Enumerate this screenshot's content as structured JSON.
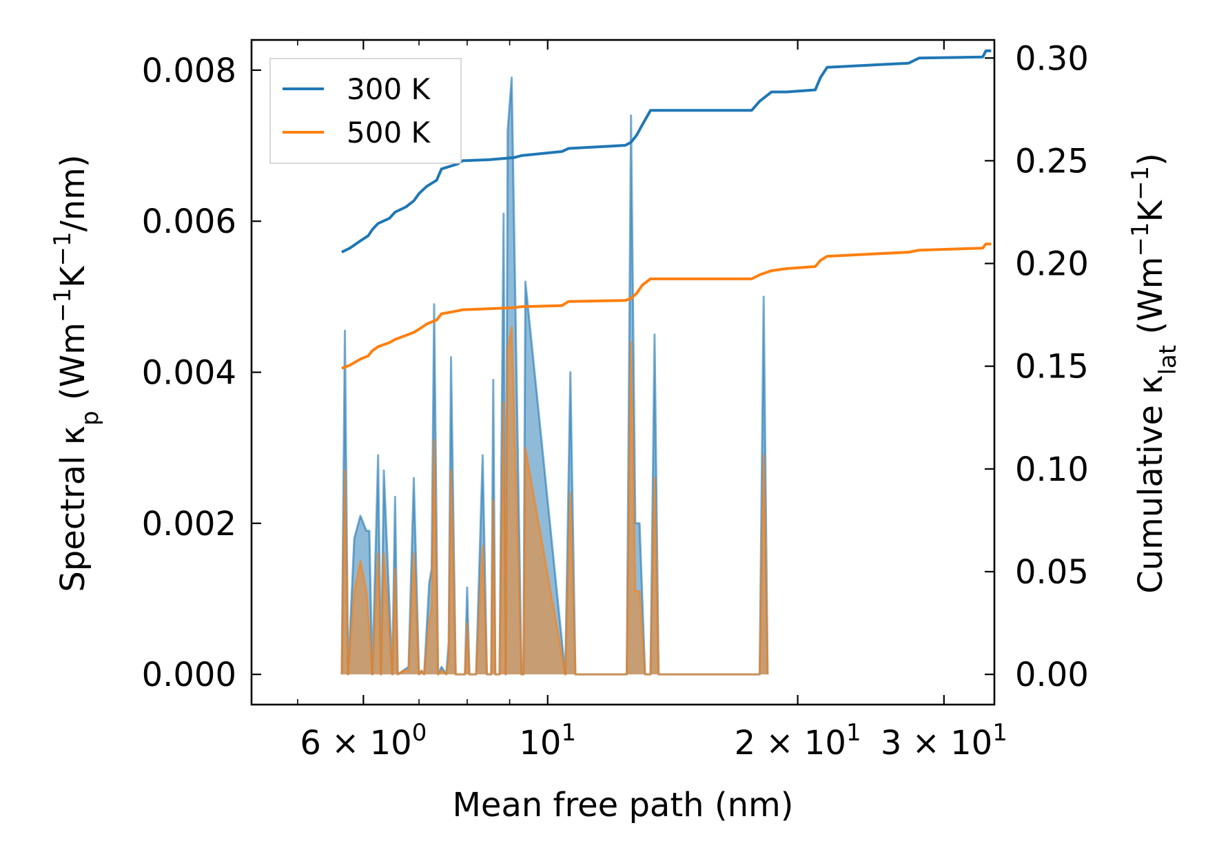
{
  "chart_data": {
    "type": "line",
    "title": "",
    "xlabel": "Mean free path (nm)",
    "ylabel": "Spectral κp (Wm−1K−1/nm)",
    "ylabel2": "Cumulative κlat (Wm−1K−1)",
    "xscale": "log",
    "xlim": [
      4.4,
      34.5
    ],
    "ylim": [
      -0.0004,
      0.0084
    ],
    "y2lim": [
      -0.0147,
      0.3088
    ],
    "x_ticks": [
      {
        "value": 6,
        "label": "6 × 10",
        "exp": "0"
      },
      {
        "value": 10,
        "label": "10",
        "exp": "1"
      },
      {
        "value": 20,
        "label": "2 × 10",
        "exp": "1"
      },
      {
        "value": 30,
        "label": "3 × 10",
        "exp": "1"
      }
    ],
    "y_ticks": [
      "0.000",
      "0.002",
      "0.004",
      "0.006",
      "0.008"
    ],
    "y2_ticks": [
      "0.00",
      "0.05",
      "0.10",
      "0.15",
      "0.20",
      "0.25",
      "0.30"
    ],
    "legend": {
      "location": "upper-left",
      "entries": [
        {
          "label": "300 K",
          "color": "#1f77b4"
        },
        {
          "label": "500 K",
          "color": "#ff7f0e"
        }
      ]
    },
    "spectral": {
      "x": [
        5.65,
        5.7,
        5.75,
        5.85,
        5.95,
        6.05,
        6.1,
        6.15,
        6.25,
        6.3,
        6.35,
        6.5,
        6.55,
        6.6,
        6.7,
        6.8,
        6.9,
        7.0,
        7.05,
        7.1,
        7.2,
        7.25,
        7.3,
        7.38,
        7.45,
        7.55,
        7.6,
        7.65,
        7.75,
        7.95,
        8.0,
        8.05,
        8.2,
        8.35,
        8.45,
        8.55,
        8.6,
        8.65,
        8.75,
        8.85,
        8.9,
        8.95,
        9.05,
        9.3,
        9.35,
        9.4,
        10.5,
        10.65,
        10.8,
        12.45,
        12.6,
        12.75,
        12.9,
        13.1,
        13.3,
        13.45,
        13.6,
        18.0,
        18.2,
        18.4,
        19.2,
        19.4,
        19.6,
        21.3,
        21.5,
        21.7,
        21.9,
        22.1,
        27.7,
        27.9,
        28.1,
        34.1,
        34.3,
        34.5
      ],
      "series": [
        {
          "name": "300 K",
          "values": [
            0,
            0.00455,
            0,
            0.0018,
            0.0021,
            0.0019,
            0.0019,
            0,
            0.0029,
            0,
            0.0027,
            0,
            0.00235,
            0,
            5e-05,
            0.0001,
            0.0026,
            0,
            5e-05,
            0,
            0.0012,
            0.0014,
            0.0049,
            0,
            0.0001,
            0,
            0.00042,
            0.0042,
            0,
            0,
            0.00115,
            0,
            0,
            0.0029,
            0,
            0,
            0.0039,
            0,
            0,
            0.0061,
            0,
            0.0072,
            0.0079,
            0,
            0,
            0.0052,
            0,
            0.004,
            0,
            0,
            0.0074,
            0.002,
            0.002,
            0,
            0,
            0.0045,
            0,
            0,
            0.005,
            0
          ],
          "x_sparse": true
        },
        {
          "name": "500 K",
          "values": [
            0,
            0.0027,
            0,
            0.0011,
            0.0015,
            0.0011,
            0.0006,
            0,
            0.0016,
            0,
            0.0016,
            0,
            0.0014,
            0,
            5e-05,
            5e-05,
            0.0016,
            0,
            5e-05,
            0,
            0.0007,
            0.0009,
            0.0031,
            0,
            5e-05,
            0,
            0.0002,
            0.0027,
            0,
            0,
            0.00068,
            0,
            0,
            0.0017,
            0,
            0,
            0.0023,
            0,
            0,
            0.0036,
            0,
            0.0043,
            0.0046,
            0,
            0,
            0.003,
            0,
            0.0024,
            0,
            0,
            0.0044,
            0.0011,
            0.0011,
            0,
            0,
            0.0026,
            0,
            0,
            0.0029,
            0
          ],
          "x_sparse": true
        }
      ]
    },
    "cumulative": {
      "x": [
        5.65,
        5.78,
        5.95,
        6.08,
        6.15,
        6.25,
        6.45,
        6.55,
        6.75,
        6.9,
        7.0,
        7.15,
        7.35,
        7.45,
        7.8,
        7.9,
        8.5,
        9.1,
        9.3,
        10.4,
        10.6,
        12.4,
        12.6,
        12.8,
        13.0,
        13.3,
        13.45,
        17.6,
        18.0,
        18.6,
        19.4,
        21.0,
        21.3,
        21.7,
        27.2,
        28.0,
        33.4,
        33.7,
        34.2
      ],
      "series": [
        {
          "name": "300 K",
          "values": [
            0.2055,
            0.2075,
            0.211,
            0.2135,
            0.2165,
            0.2195,
            0.222,
            0.225,
            0.2275,
            0.2305,
            0.234,
            0.2375,
            0.2405,
            0.246,
            0.2485,
            0.25,
            0.2505,
            0.2515,
            0.2525,
            0.2545,
            0.256,
            0.2575,
            0.259,
            0.2625,
            0.2675,
            0.2745,
            0.2745,
            0.2745,
            0.279,
            0.2835,
            0.2835,
            0.2845,
            0.2905,
            0.2955,
            0.2975,
            0.3,
            0.3005,
            0.3035,
            0.3035
          ]
        },
        {
          "name": "500 K",
          "values": [
            0.149,
            0.1505,
            0.1535,
            0.155,
            0.1575,
            0.1595,
            0.1615,
            0.163,
            0.165,
            0.1665,
            0.168,
            0.1705,
            0.1725,
            0.1755,
            0.177,
            0.1775,
            0.178,
            0.1785,
            0.179,
            0.1795,
            0.1815,
            0.182,
            0.183,
            0.1855,
            0.1895,
            0.1925,
            0.1925,
            0.1925,
            0.1945,
            0.1965,
            0.1975,
            0.1985,
            0.2015,
            0.2035,
            0.2055,
            0.2065,
            0.2075,
            0.2095,
            0.2095
          ]
        }
      ]
    }
  }
}
